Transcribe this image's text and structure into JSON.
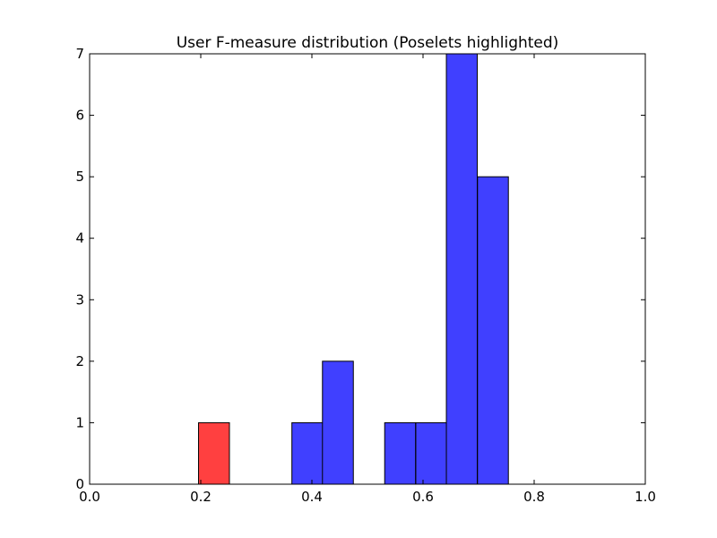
{
  "chart_data": {
    "type": "bar",
    "title": "User F-measure distribution (Poselets highlighted)",
    "xlabel": "",
    "ylabel": "",
    "xlim": [
      0.0,
      1.0
    ],
    "ylim": [
      0,
      7
    ],
    "xticks": [
      "0.0",
      "0.2",
      "0.4",
      "0.6",
      "0.8",
      "1.0"
    ],
    "yticks": [
      "0",
      "1",
      "2",
      "3",
      "4",
      "5",
      "6",
      "7"
    ],
    "grid": false,
    "bin_width": 0.0556,
    "bars": [
      {
        "x0": 0.196,
        "value": 1,
        "highlighted": true
      },
      {
        "x0": 0.364,
        "value": 1,
        "highlighted": false
      },
      {
        "x0": 0.419,
        "value": 2,
        "highlighted": false
      },
      {
        "x0": 0.531,
        "value": 1,
        "highlighted": false
      },
      {
        "x0": 0.587,
        "value": 1,
        "highlighted": false
      },
      {
        "x0": 0.642,
        "value": 7,
        "highlighted": false
      },
      {
        "x0": 0.698,
        "value": 5,
        "highlighted": false
      }
    ],
    "colors": {
      "default": "#4040ff",
      "highlight": "#ff4040",
      "edge": "#000000"
    }
  }
}
